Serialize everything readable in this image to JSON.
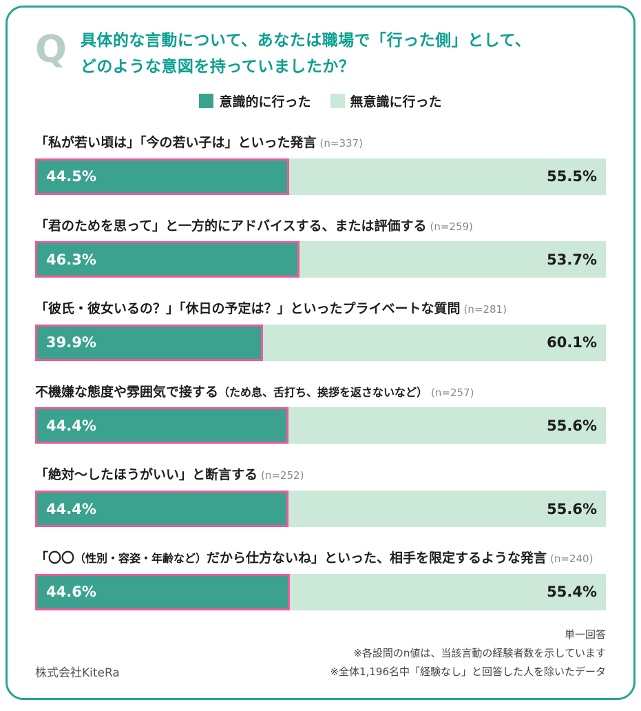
{
  "colors": {
    "border": "#2aa391",
    "title": "#0aa08e",
    "q": "#b7cec9",
    "dark": "#3aa28f",
    "light": "#cbe8d9",
    "pink": "#ee5a9a"
  },
  "header": {
    "q_mark": "Q",
    "title_line1": "具体的な言動について、あなたは職場で「行った側」として、",
    "title_line2": "どのような意図を持っていましたか？"
  },
  "chart_data": {
    "type": "bar",
    "orientation": "horizontal",
    "stacked": true,
    "unit": "%",
    "xlim": [
      0,
      100
    ],
    "title": "具体的な言動について、あなたは職場で「行った側」として、どのような意図を持っていましたか？",
    "series_names": [
      "意識的に行った",
      "無意識に行った"
    ],
    "legend_position": "top-center",
    "rows": [
      {
        "label": "「私が若い頃は」「今の若い子は」といった発言",
        "n": "(n=337)",
        "values": [
          44.5,
          55.5
        ],
        "labels": [
          "44.5%",
          "55.5%"
        ]
      },
      {
        "label": "「君のためを思って」と一方的にアドバイスする、または評価する",
        "n": "(n=259)",
        "values": [
          46.3,
          53.7
        ],
        "labels": [
          "46.3%",
          "53.7%"
        ]
      },
      {
        "label": "「彼氏・彼女いるの？」「休日の予定は？」といったプライベートな質問",
        "n": "(n=281)",
        "values": [
          39.9,
          60.1
        ],
        "labels": [
          "39.9%",
          "60.1%"
        ]
      },
      {
        "label": "不機嫌な態度や雰囲気で接する（ため息、舌打ち、挨拶を返さないなど）",
        "label_parts": [
          {
            "text": "不機嫌な態度や雰囲気で接する",
            "small": false
          },
          {
            "text": "（ため息、舌打ち、挨拶を返さないなど）",
            "small": true
          }
        ],
        "n": "(n=257)",
        "values": [
          44.4,
          55.6
        ],
        "labels": [
          "44.4%",
          "55.6%"
        ]
      },
      {
        "label": "「絶対～したほうがいい」と断言する",
        "n": "(n=252)",
        "values": [
          44.4,
          55.6
        ],
        "labels": [
          "44.4%",
          "55.6%"
        ]
      },
      {
        "label": "「〇〇（性別・容姿・年齢など）だから仕方ないね」といった、相手を限定するような発言",
        "label_parts": [
          {
            "text": "「〇〇",
            "small": false
          },
          {
            "text": "（性別・容姿・年齢など）",
            "small": true
          },
          {
            "text": "だから仕方ないね」といった、相手を限定するような発言",
            "small": false
          }
        ],
        "n": "(n=240)",
        "values": [
          44.6,
          55.4
        ],
        "labels": [
          "44.6%",
          "55.4%"
        ]
      }
    ]
  },
  "footer": {
    "note1": "単一回答",
    "note2": "※各設問のn値は、当該言動の経験者数を示しています",
    "note3": "※全体1,196名中「経験なし」と回答した人を除いたデータ",
    "company": "株式会社KiteRa"
  }
}
